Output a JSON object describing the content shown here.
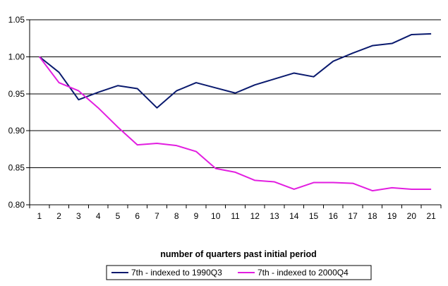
{
  "chart_data": {
    "type": "line",
    "title": "",
    "xlabel": "number of quarters past initial period",
    "ylabel": "",
    "x": [
      1,
      2,
      3,
      4,
      5,
      6,
      7,
      8,
      9,
      10,
      11,
      12,
      13,
      14,
      15,
      16,
      17,
      18,
      19,
      20,
      21
    ],
    "ylim": [
      0.8,
      1.05
    ],
    "yticks": [
      "0.80",
      "0.85",
      "0.90",
      "0.95",
      "1.00",
      "1.05"
    ],
    "grid": "horizontal",
    "legend_position": "bottom",
    "series": [
      {
        "name": "7th - indexed to 1990Q3",
        "color": "#0a1a6e",
        "values": [
          1.0,
          0.979,
          0.942,
          0.952,
          0.961,
          0.957,
          0.931,
          0.954,
          0.965,
          0.958,
          0.951,
          0.962,
          0.97,
          0.978,
          0.973,
          0.994,
          1.005,
          1.015,
          1.018,
          1.03,
          1.031
        ]
      },
      {
        "name": "7th - indexed to 2000Q4",
        "color": "#e21ee0",
        "values": [
          1.0,
          0.965,
          0.954,
          0.931,
          0.905,
          0.881,
          0.883,
          0.88,
          0.872,
          0.849,
          0.844,
          0.833,
          0.831,
          0.821,
          0.83,
          0.83,
          0.829,
          0.819,
          0.823,
          0.821,
          0.821
        ]
      }
    ]
  }
}
